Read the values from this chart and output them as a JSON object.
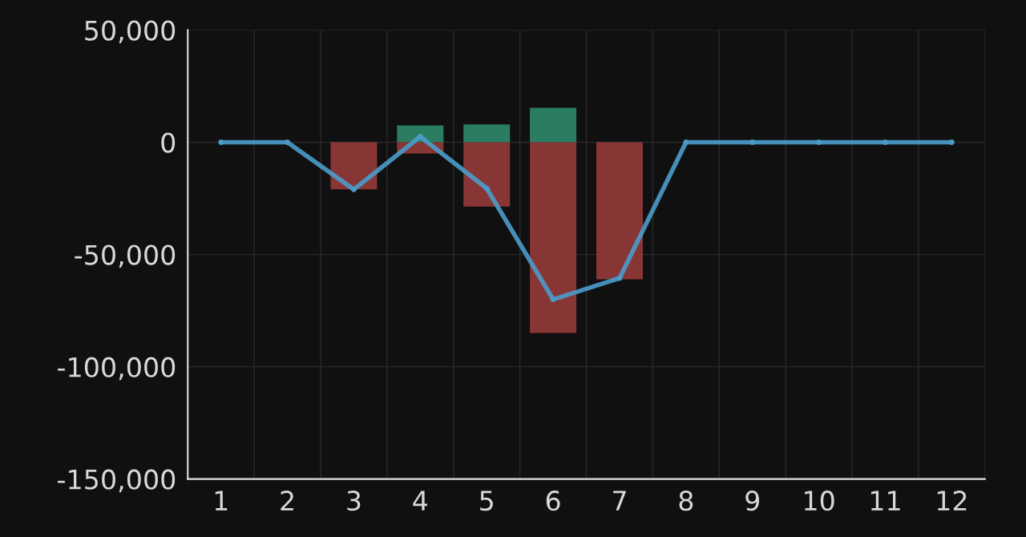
{
  "chart_data": {
    "type": "bar",
    "stacked": true,
    "categories": [
      "1",
      "2",
      "3",
      "4",
      "5",
      "6",
      "7",
      "8",
      "9",
      "10",
      "11",
      "12"
    ],
    "series": [
      {
        "color": "#2f8a6c",
        "values": [
          0,
          0,
          0,
          7500,
          8000,
          15400,
          0,
          0,
          0,
          0,
          0,
          0
        ]
      },
      {
        "color": "#953a3a",
        "values": [
          0,
          0,
          -21000,
          -5000,
          -28600,
          -85000,
          -61000,
          0,
          0,
          0,
          0,
          0
        ]
      },
      {
        "type": "line",
        "color": "#4a9ccb",
        "values": [
          0,
          0,
          -21000,
          2500,
          -20500,
          -70000,
          -60500,
          0,
          0,
          0,
          0,
          0
        ],
        "marker": "circle",
        "line_style": "solid"
      }
    ],
    "ylim": [
      -150000,
      50000
    ],
    "yticks": [
      {
        "value": 50000,
        "label": "50,000"
      },
      {
        "value": 0,
        "label": "0"
      },
      {
        "value": -50000,
        "label": "-50,000"
      },
      {
        "value": -100000,
        "label": "-100,000"
      },
      {
        "value": -150000,
        "label": "-150,000"
      }
    ],
    "grid": true
  }
}
